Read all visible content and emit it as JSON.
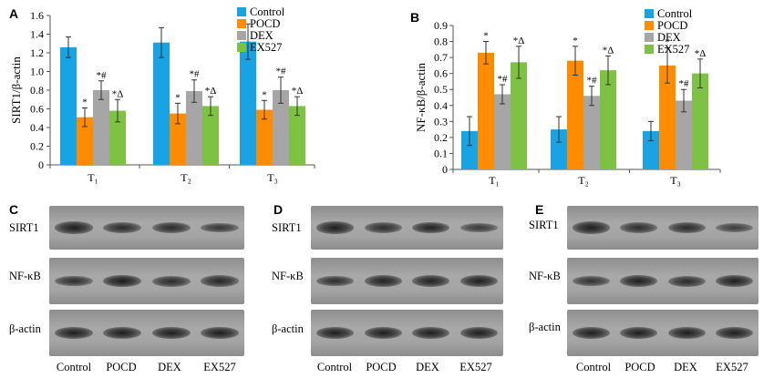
{
  "colors": {
    "Control": "#1aa3e2",
    "POCD": "#ff8c00",
    "DEX": "#a6a6a6",
    "EX527": "#7dc242"
  },
  "chart_data": [
    {
      "panel": "A",
      "type": "bar",
      "ylabel": "SIRT1/β-actin",
      "ylim": [
        0,
        1.6
      ],
      "yticks": [
        "0",
        "0.2",
        "0.4",
        "0.6",
        "0.8",
        "1.0",
        "1.2",
        "1.4",
        "1.6"
      ],
      "categories": [
        "T₁",
        "T₂",
        "T₃"
      ],
      "legend": [
        "Control",
        "POCD",
        "DEX",
        "EX527"
      ],
      "legend_position": "top-right",
      "series": [
        {
          "name": "Control",
          "values": [
            1.26,
            1.31,
            1.32
          ],
          "errors": [
            0.11,
            0.16,
            0.19
          ],
          "marks": [
            "",
            "",
            ""
          ]
        },
        {
          "name": "POCD",
          "values": [
            0.51,
            0.55,
            0.59
          ],
          "errors": [
            0.1,
            0.11,
            0.1
          ],
          "marks": [
            "*",
            "*",
            "*"
          ]
        },
        {
          "name": "DEX",
          "values": [
            0.8,
            0.79,
            0.8
          ],
          "errors": [
            0.1,
            0.12,
            0.14
          ],
          "marks": [
            "*#",
            "*#",
            "*#"
          ]
        },
        {
          "name": "EX527",
          "values": [
            0.58,
            0.63,
            0.63
          ],
          "errors": [
            0.12,
            0.1,
            0.1
          ],
          "marks": [
            "*Δ",
            "*Δ",
            "*Δ"
          ]
        }
      ]
    },
    {
      "panel": "B",
      "type": "bar",
      "ylabel": "NF-κB/β-actin",
      "ylim": [
        0,
        0.9
      ],
      "yticks": [
        "0",
        "0.1",
        "0.2",
        "0.3",
        "0.4",
        "0.5",
        "0.6",
        "0.7",
        "0.8",
        "0.9"
      ],
      "categories": [
        "T₁",
        "T₂",
        "T₃"
      ],
      "legend": [
        "Control",
        "POCD",
        "DEX",
        "EX527"
      ],
      "legend_position": "top-right",
      "series": [
        {
          "name": "Control",
          "values": [
            0.24,
            0.25,
            0.24
          ],
          "errors": [
            0.09,
            0.08,
            0.06
          ],
          "marks": [
            "",
            "",
            ""
          ]
        },
        {
          "name": "POCD",
          "values": [
            0.73,
            0.68,
            0.65
          ],
          "errors": [
            0.07,
            0.09,
            0.11
          ],
          "marks": [
            "*",
            "*",
            "*"
          ]
        },
        {
          "name": "DEX",
          "values": [
            0.47,
            0.46,
            0.43
          ],
          "errors": [
            0.06,
            0.06,
            0.07
          ],
          "marks": [
            "*#",
            "*#",
            "*#"
          ]
        },
        {
          "name": "EX527",
          "values": [
            0.67,
            0.62,
            0.6
          ],
          "errors": [
            0.1,
            0.09,
            0.09
          ],
          "marks": [
            "*Δ",
            "*Δ",
            "*Δ"
          ]
        }
      ]
    }
  ],
  "blots": [
    {
      "letter": "C",
      "rows": [
        "SIRT1",
        "NF-κB",
        "β-actin"
      ],
      "lanes": [
        "Control",
        "POCD",
        "DEX",
        "EX527"
      ],
      "band_intensity": [
        [
          0.9,
          0.75,
          0.75,
          0.6
        ],
        [
          0.7,
          0.95,
          0.75,
          0.8
        ],
        [
          0.9,
          0.9,
          0.9,
          0.9
        ]
      ]
    },
    {
      "letter": "D",
      "rows": [
        "SIRT1",
        "NF-κB",
        "β-actin"
      ],
      "lanes": [
        "Control",
        "POCD",
        "DEX",
        "EX527"
      ],
      "band_intensity": [
        [
          0.9,
          0.7,
          0.85,
          0.55
        ],
        [
          0.7,
          0.85,
          0.85,
          0.9
        ],
        [
          0.9,
          0.9,
          0.9,
          0.9
        ]
      ]
    },
    {
      "letter": "E",
      "rows": [
        "SIRT1",
        "NF-κB",
        "β-actin"
      ],
      "lanes": [
        "Control",
        "POCD",
        "DEX",
        "EX527"
      ],
      "band_intensity": [
        [
          0.9,
          0.7,
          0.75,
          0.5
        ],
        [
          0.65,
          0.9,
          0.75,
          0.9
        ],
        [
          0.9,
          0.9,
          0.9,
          0.9
        ]
      ]
    }
  ]
}
